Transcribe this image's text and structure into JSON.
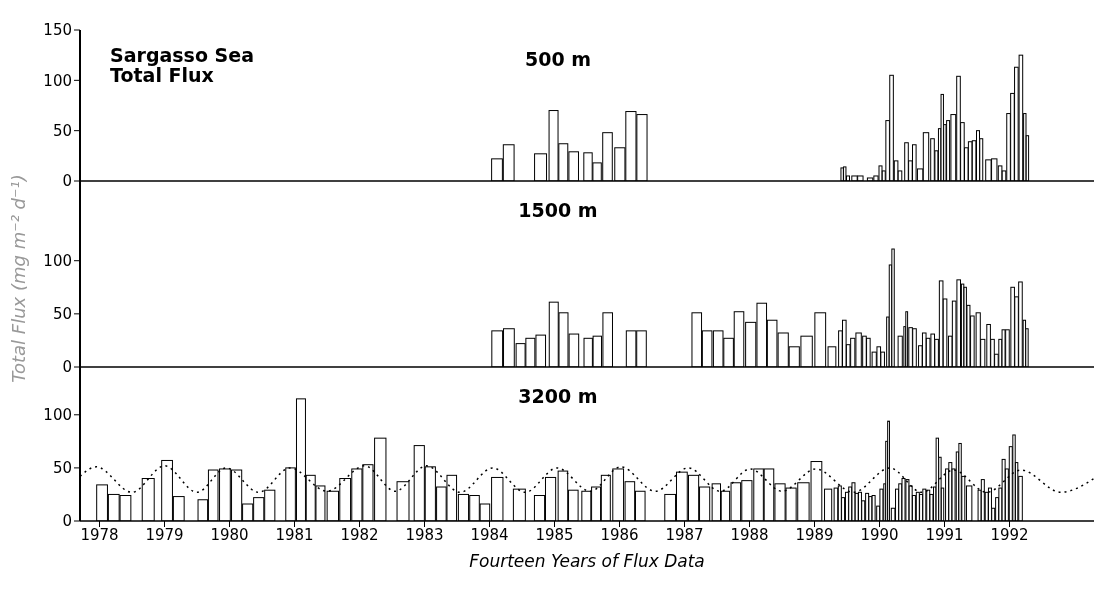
{
  "chart_data": [
    {
      "type": "bar",
      "title": "Sargasso Sea Total Flux",
      "subtitle": "500 m",
      "xlim": [
        1977.7,
        1993.3
      ],
      "ylim": [
        0,
        150
      ],
      "yticks": [
        0,
        50,
        100,
        150
      ],
      "tick_labels": "y",
      "x": [
        1984.12,
        1984.3,
        1984.79,
        1984.99,
        1985.14,
        1985.3,
        1985.52,
        1985.66,
        1985.82,
        1986.01,
        1986.18,
        1986.35,
        1989.43,
        1989.47,
        1989.52,
        1989.62,
        1989.71,
        1989.86,
        1989.95,
        1990.02,
        1990.07,
        1990.13,
        1990.19,
        1990.26,
        1990.32,
        1990.42,
        1990.48,
        1990.54,
        1990.63,
        1990.72,
        1990.82,
        1990.88,
        1990.93,
        1990.97,
        1991.01,
        1991.06,
        1991.14,
        1991.22,
        1991.28,
        1991.34,
        1991.4,
        1991.46,
        1991.52,
        1991.57,
        1991.68,
        1991.77,
        1991.86,
        1991.92,
        1991.99,
        1992.05,
        1992.11,
        1992.18,
        1992.24,
        1992.28
      ],
      "series": [
        {
          "color": "#ffffff",
          "values": [
            22,
            36,
            27,
            70,
            37,
            29,
            28,
            18,
            48,
            33,
            69,
            66,
            13,
            14,
            5,
            5,
            5,
            3,
            5,
            15,
            10,
            60,
            105,
            20,
            10,
            38,
            20,
            36,
            12,
            48,
            42,
            30,
            52,
            86,
            56,
            60,
            66,
            104,
            58,
            33,
            39,
            40,
            50,
            42,
            21,
            22,
            15,
            10,
            67,
            87,
            113,
            125,
            67,
            45
          ]
        }
      ]
    },
    {
      "type": "bar",
      "subtitle": "1500 m",
      "ylabel": "Total Flux (mg m⁻² d⁻¹)",
      "xlim": [
        1977.7,
        1993.3
      ],
      "ylim": [
        0,
        175
      ],
      "yticks": [
        0,
        50,
        100
      ],
      "tick_labels": "y",
      "x": [
        1984.12,
        1984.3,
        1984.48,
        1984.63,
        1984.79,
        1984.99,
        1985.14,
        1985.3,
        1985.52,
        1985.66,
        1985.82,
        1986.18,
        1986.34,
        1987.19,
        1987.35,
        1987.52,
        1987.68,
        1987.84,
        1988.02,
        1988.19,
        1988.35,
        1988.52,
        1988.69,
        1988.88,
        1989.09,
        1989.27,
        1989.4,
        1989.46,
        1989.52,
        1989.59,
        1989.68,
        1989.77,
        1989.83,
        1989.92,
        1989.99,
        1990.05,
        1990.13,
        1990.17,
        1990.21,
        1990.32,
        1990.39,
        1990.42,
        1990.48,
        1990.54,
        1990.63,
        1990.69,
        1990.75,
        1990.82,
        1990.88,
        1990.95,
        1991.01,
        1991.09,
        1991.15,
        1991.22,
        1991.28,
        1991.32,
        1991.37,
        1991.43,
        1991.52,
        1991.59,
        1991.68,
        1991.74,
        1991.8,
        1991.86,
        1991.91,
        1991.97,
        1992.05,
        1992.11,
        1992.17,
        1992.23,
        1992.27
      ],
      "series": [
        {
          "color": "#ffffff",
          "values": [
            34,
            36,
            22,
            27,
            30,
            61,
            51,
            31,
            27,
            29,
            51,
            34,
            34,
            51,
            34,
            34,
            27,
            52,
            42,
            60,
            44,
            32,
            19,
            29,
            51,
            19,
            34,
            44,
            21,
            27,
            32,
            29,
            27,
            14,
            19,
            14,
            47,
            96,
            111,
            29,
            38,
            52,
            37,
            36,
            20,
            32,
            27,
            31,
            26,
            81,
            64,
            29,
            62,
            82,
            78,
            75,
            58,
            48,
            51,
            26,
            40,
            26,
            12,
            26,
            35,
            35,
            75,
            66,
            80,
            44,
            36
          ]
        }
      ]
    },
    {
      "type": "bar",
      "subtitle": "3200 m",
      "xlabel": "Fourteen Years of Flux Data",
      "xlim": [
        1977.7,
        1993.3
      ],
      "ylim": [
        0,
        145
      ],
      "yticks": [
        0,
        50,
        100
      ],
      "xticks": [
        1978,
        1979,
        1980,
        1981,
        1982,
        1983,
        1984,
        1985,
        1986,
        1987,
        1988,
        1989,
        1990,
        1991,
        1992
      ],
      "x": [
        1978.04,
        1978.22,
        1978.4,
        1978.75,
        1979.04,
        1979.22,
        1979.59,
        1979.75,
        1979.93,
        1980.11,
        1980.28,
        1980.45,
        1980.62,
        1980.94,
        1981.1,
        1981.25,
        1981.4,
        1981.59,
        1981.78,
        1981.96,
        1982.13,
        1982.32,
        1982.67,
        1982.92,
        1983.09,
        1983.26,
        1983.42,
        1983.6,
        1983.77,
        1983.93,
        1984.12,
        1984.46,
        1984.77,
        1984.94,
        1985.13,
        1985.29,
        1985.49,
        1985.64,
        1985.79,
        1985.98,
        1986.16,
        1986.32,
        1986.78,
        1986.96,
        1987.14,
        1987.31,
        1987.49,
        1987.63,
        1987.79,
        1987.96,
        1988.14,
        1988.3,
        1988.47,
        1988.64,
        1988.83,
        1989.03,
        1989.21,
        1989.33,
        1989.39,
        1989.44,
        1989.5,
        1989.55,
        1989.6,
        1989.65,
        1989.7,
        1989.75,
        1989.81,
        1989.86,
        1989.91,
        1989.98,
        1990.03,
        1990.08,
        1990.11,
        1990.14,
        1990.21,
        1990.27,
        1990.32,
        1990.37,
        1990.43,
        1990.48,
        1990.53,
        1990.59,
        1990.64,
        1990.69,
        1990.75,
        1990.8,
        1990.85,
        1990.89,
        1990.93,
        1990.97,
        1991.04,
        1991.09,
        1991.14,
        1991.2,
        1991.24,
        1991.29,
        1991.38,
        1991.54,
        1991.59,
        1991.65,
        1991.7,
        1991.75,
        1991.81,
        1991.86,
        1991.91,
        1991.96,
        1992.02,
        1992.07,
        1992.11,
        1992.17
      ],
      "series": [
        {
          "color": "#ffffff",
          "values": [
            34,
            25,
            24,
            40,
            57,
            23,
            20,
            48,
            49,
            48,
            16,
            22,
            29,
            50,
            115,
            43,
            33,
            28,
            40,
            49,
            53,
            78,
            37,
            71,
            51,
            32,
            43,
            25,
            24,
            16,
            41,
            30,
            24,
            41,
            47,
            29,
            28,
            32,
            43,
            49,
            37,
            28,
            25,
            46,
            43,
            32,
            35,
            28,
            36,
            38,
            49,
            49,
            35,
            31,
            36,
            56,
            30,
            31,
            33,
            22,
            27,
            32,
            36,
            26,
            27,
            19,
            26,
            23,
            24,
            14,
            30,
            35,
            75,
            94,
            12,
            30,
            35,
            40,
            39,
            33,
            24,
            27,
            25,
            30,
            29,
            25,
            32,
            78,
            60,
            31,
            49,
            55,
            49,
            65,
            73,
            42,
            33,
            29,
            39,
            27,
            31,
            12,
            22,
            31,
            58,
            49,
            70,
            81,
            55,
            42
          ]
        },
        {
          "type": "line",
          "color": "#000000",
          "line_style": "dotted",
          "x": [
            1977.7,
            1977.95,
            1978.5,
            1979.0,
            1979.5,
            1979.95,
            1980.45,
            1980.93,
            1981.5,
            1982.08,
            1982.55,
            1983.03,
            1983.55,
            1984.05,
            1984.55,
            1985.04,
            1985.55,
            1986.02,
            1986.55,
            1987.06,
            1987.55,
            1988.01,
            1988.5,
            1989.02,
            1989.6,
            1990.16,
            1990.65,
            1991.14,
            1991.65,
            1992.18,
            1992.79,
            1993.3
          ],
          "values": [
            42,
            51,
            27,
            52,
            27,
            50,
            27,
            50,
            28,
            52,
            28,
            52,
            27,
            50,
            27,
            50,
            28,
            51,
            28,
            50,
            28,
            49,
            28,
            49,
            27,
            50,
            27,
            48,
            27,
            48,
            27,
            40
          ]
        }
      ]
    }
  ]
}
